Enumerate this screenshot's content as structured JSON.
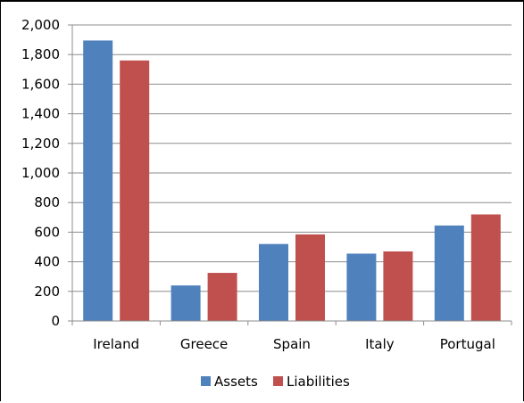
{
  "chart_data": {
    "type": "bar",
    "title": "",
    "xlabel": "",
    "ylabel": "",
    "categories": [
      "Ireland",
      "Greece",
      "Spain",
      "Italy",
      "Portugal"
    ],
    "series": [
      {
        "name": "Assets",
        "values": [
          1895,
          240,
          520,
          455,
          645
        ],
        "color": "#4f81bd"
      },
      {
        "name": "Liabilities",
        "values": [
          1760,
          325,
          585,
          470,
          720
        ],
        "color": "#c0504d"
      }
    ],
    "ylim": [
      0,
      2000
    ],
    "y_ticks": [
      "0",
      "200",
      "400",
      "600",
      "800",
      "1,000",
      "1,200",
      "1,400",
      "1,600",
      "1,800",
      "2,000"
    ],
    "grid": true,
    "legend_position": "bottom"
  }
}
